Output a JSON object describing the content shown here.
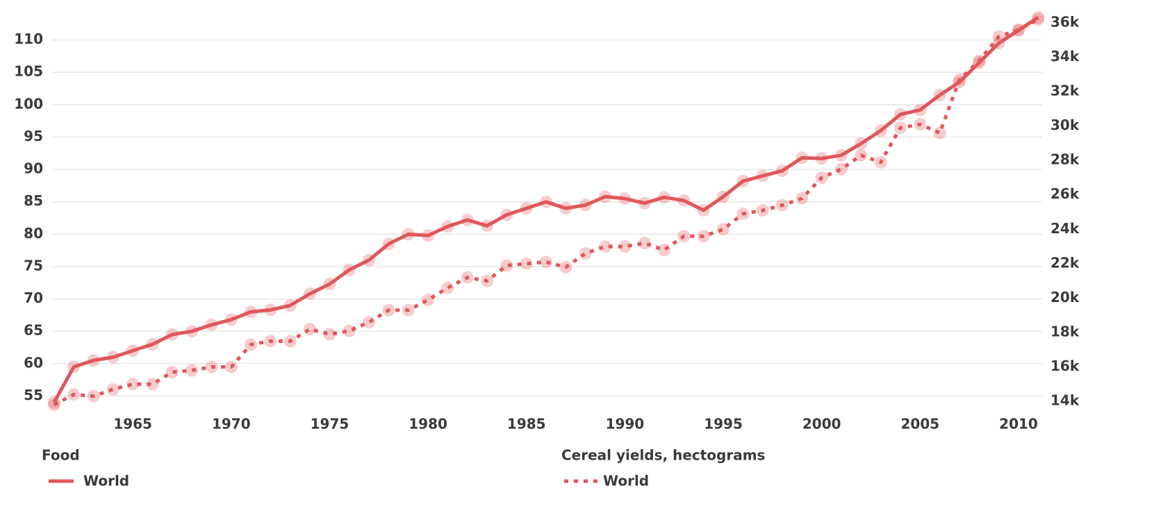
{
  "chart_data": {
    "type": "line",
    "x": [
      1961,
      1962,
      1963,
      1964,
      1965,
      1966,
      1967,
      1968,
      1969,
      1970,
      1971,
      1972,
      1973,
      1974,
      1975,
      1976,
      1977,
      1978,
      1979,
      1980,
      1981,
      1982,
      1983,
      1984,
      1985,
      1986,
      1987,
      1988,
      1989,
      1990,
      1991,
      1992,
      1993,
      1994,
      1995,
      1996,
      1997,
      1998,
      1999,
      2000,
      2001,
      2002,
      2003,
      2004,
      2005,
      2006,
      2007,
      2008,
      2009,
      2010,
      2011
    ],
    "xlim": [
      1960.9,
      2011.2
    ],
    "xticks": [
      1965,
      1970,
      1975,
      1980,
      1985,
      1990,
      1995,
      2000,
      2005,
      2010
    ],
    "ylim": [
      52.9,
      113.5
    ],
    "yticks": [
      55,
      60,
      65,
      70,
      75,
      80,
      85,
      90,
      95,
      100,
      105,
      110
    ],
    "y2lim": [
      13520,
      36320
    ],
    "y2ticks": [
      {
        "value": 14000,
        "label": "14k"
      },
      {
        "value": 16000,
        "label": "16k"
      },
      {
        "value": 18000,
        "label": "18k"
      },
      {
        "value": 20000,
        "label": "20k"
      },
      {
        "value": 22000,
        "label": "22k"
      },
      {
        "value": 24000,
        "label": "24k"
      },
      {
        "value": 26000,
        "label": "26k"
      },
      {
        "value": 28000,
        "label": "28k"
      },
      {
        "value": 30000,
        "label": "30k"
      },
      {
        "value": 32000,
        "label": "32k"
      },
      {
        "value": 34000,
        "label": "34k"
      },
      {
        "value": 36000,
        "label": "36k"
      }
    ],
    "grid": true,
    "series": [
      {
        "group": "Food",
        "name": "World",
        "color": "#e0575b",
        "dash": "solid",
        "axis": "y",
        "values": [
          54,
          59.5,
          60.5,
          61,
          62,
          63,
          64.5,
          65,
          66,
          66.8,
          68,
          68.3,
          69,
          70.8,
          72.3,
          74.5,
          76,
          78.5,
          80,
          79.8,
          81.2,
          82.2,
          81.3,
          83,
          84,
          85,
          84,
          84.5,
          85.8,
          85.5,
          84.8,
          85.7,
          85.2,
          83.7,
          85.8,
          88.2,
          89,
          89.8,
          91.8,
          91.7,
          92.2,
          94,
          96,
          98.5,
          99.2,
          101.5,
          103.5,
          106.5,
          109.5,
          111.5,
          113.5
        ]
      },
      {
        "group": "Cereal yields, hectograms",
        "name": "World",
        "color": "#e0575b",
        "dash": "dotted",
        "axis": "y2",
        "values": [
          13800,
          14400,
          14300,
          14700,
          15000,
          15000,
          15700,
          15800,
          16000,
          16000,
          17300,
          17500,
          17500,
          18200,
          17900,
          18100,
          18600,
          19300,
          19300,
          19900,
          20600,
          21200,
          21000,
          21900,
          22000,
          22100,
          21800,
          22600,
          23000,
          23000,
          23200,
          22800,
          23600,
          23600,
          24000,
          24900,
          25100,
          25400,
          25800,
          27000,
          27500,
          28300,
          27900,
          29900,
          30100,
          29600,
          32700,
          33800,
          35200,
          35600,
          36200
        ]
      }
    ]
  }
}
